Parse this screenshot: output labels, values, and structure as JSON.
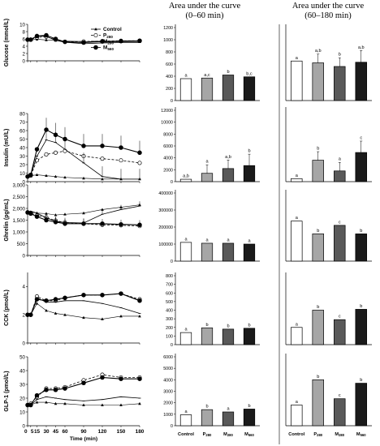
{
  "headers": {
    "auc1_line1": "Area under the curve",
    "auc1_line2": "(0–60 min)",
    "auc2_line1": "Area under the curve",
    "auc2_line2": "(60–180 min)"
  },
  "x_axis": {
    "ticks": [
      0,
      5,
      15,
      30,
      45,
      60,
      90,
      120,
      150,
      180
    ],
    "label": "Time (min)"
  },
  "legend": [
    "Control",
    "P280",
    "M280",
    "M560"
  ],
  "bar_categories": [
    "Control",
    "P280",
    "M280",
    "M560"
  ],
  "colors": {
    "control_bar": "#ffffff",
    "p280_bar": "#a6a6a6",
    "m280_bar": "#595959",
    "m560_bar": "#1a1a1a",
    "line": "#000000"
  },
  "chart_data": [
    {
      "type": "line",
      "ylabel": "Glucose (mmol/L)",
      "ylim": [
        0,
        10
      ],
      "yticks": [
        0,
        2,
        4,
        6,
        8,
        10
      ],
      "x": [
        0,
        5,
        15,
        30,
        45,
        60,
        90,
        120,
        150,
        180
      ],
      "series": [
        {
          "name": "Control",
          "values": [
            5.8,
            5.7,
            5.9,
            5.7,
            5.6,
            5.4,
            5.3,
            5.2,
            5.2,
            5.2
          ]
        },
        {
          "name": "P280",
          "values": [
            5.8,
            5.8,
            6.4,
            6.6,
            5.8,
            5.2,
            5.3,
            5.4,
            5.5,
            5.5
          ]
        },
        {
          "name": "M280",
          "values": [
            5.8,
            5.9,
            6.8,
            6.7,
            5.6,
            5.1,
            4.7,
            4.9,
            5.0,
            5.0
          ]
        },
        {
          "name": "M560",
          "values": [
            5.8,
            5.8,
            6.8,
            7.0,
            6.0,
            5.2,
            5.0,
            5.3,
            5.4,
            5.5
          ]
        }
      ]
    },
    {
      "type": "line",
      "ylabel": "Insulin (mU/L)",
      "ylim": [
        0,
        80
      ],
      "yticks": [
        0,
        10,
        20,
        30,
        40,
        50,
        60,
        70,
        80
      ],
      "x": [
        0,
        5,
        15,
        30,
        45,
        60,
        90,
        120,
        150,
        180
      ],
      "series": [
        {
          "name": "Control",
          "values": [
            6,
            7,
            8,
            7,
            6,
            5,
            4,
            3,
            3,
            3
          ]
        },
        {
          "name": "P280",
          "values": [
            6,
            7,
            25,
            32,
            34,
            36,
            30,
            27,
            25,
            22
          ]
        },
        {
          "name": "M280",
          "values": [
            6,
            8,
            30,
            49,
            46,
            38,
            22,
            6,
            3,
            3
          ]
        },
        {
          "name": "M560",
          "values": [
            6,
            8,
            38,
            61,
            55,
            50,
            42,
            42,
            40,
            34
          ]
        }
      ]
    },
    {
      "type": "line",
      "ylabel": "Ghrelin (pg/mL)",
      "ylim": [
        0,
        3000
      ],
      "yticks": [
        0,
        500,
        1000,
        1500,
        2000,
        2500,
        3000
      ],
      "x": [
        0,
        5,
        15,
        30,
        45,
        60,
        90,
        120,
        150,
        180
      ],
      "series": [
        {
          "name": "Control",
          "values": [
            1800,
            1850,
            1800,
            1780,
            1720,
            1750,
            1800,
            1950,
            2050,
            2150
          ]
        },
        {
          "name": "P280",
          "values": [
            1820,
            1800,
            1700,
            1620,
            1480,
            1400,
            1350,
            1300,
            1280,
            1250
          ]
        },
        {
          "name": "M280",
          "values": [
            1800,
            1880,
            1800,
            1600,
            1450,
            1400,
            1380,
            1750,
            1950,
            2100
          ]
        },
        {
          "name": "M560",
          "values": [
            1830,
            1780,
            1650,
            1500,
            1420,
            1350,
            1350,
            1350,
            1320,
            1300
          ]
        }
      ]
    },
    {
      "type": "line",
      "ylabel": "CCK (pmol/L)",
      "ylim": [
        0,
        5
      ],
      "yticks": [
        0,
        2,
        4
      ],
      "x": [
        0,
        5,
        15,
        30,
        45,
        60,
        90,
        120,
        150,
        180
      ],
      "series": [
        {
          "name": "Control",
          "values": [
            2.0,
            2.0,
            2.8,
            2.3,
            2.1,
            2.0,
            1.8,
            1.7,
            1.9,
            1.9
          ]
        },
        {
          "name": "P280",
          "values": [
            2.0,
            2.0,
            3.3,
            3.0,
            3.0,
            3.2,
            3.4,
            3.4,
            3.5,
            3.1
          ]
        },
        {
          "name": "M280",
          "values": [
            2.0,
            2.0,
            3.2,
            2.9,
            2.9,
            3.0,
            3.0,
            2.8,
            2.5,
            2.1
          ]
        },
        {
          "name": "M560",
          "values": [
            2.0,
            2.0,
            3.1,
            3.0,
            3.1,
            3.2,
            3.4,
            3.4,
            3.5,
            3.0
          ]
        }
      ]
    },
    {
      "type": "line",
      "ylabel": "GLP-1 (pmol/L)",
      "ylim": [
        0,
        50
      ],
      "yticks": [
        0,
        10,
        20,
        30,
        40,
        50
      ],
      "x": [
        0,
        5,
        15,
        30,
        45,
        60,
        90,
        120,
        150,
        180
      ],
      "series": [
        {
          "name": "Control",
          "values": [
            15,
            15,
            17,
            17,
            16,
            16,
            15,
            15,
            15,
            16
          ]
        },
        {
          "name": "P280",
          "values": [
            15,
            16,
            21,
            27,
            27,
            28,
            33,
            37,
            35,
            35
          ]
        },
        {
          "name": "M280",
          "values": [
            15,
            15,
            19,
            21,
            20,
            19,
            18,
            19,
            21,
            20
          ]
        },
        {
          "name": "M560",
          "values": [
            15,
            15,
            22,
            26,
            26,
            27,
            31,
            35,
            34,
            34
          ]
        }
      ]
    },
    {
      "type": "bar",
      "panel": "Glucose AUC 0–60 min",
      "categories": [
        "Control",
        "P280",
        "M280",
        "M560"
      ],
      "ylim": [
        0,
        1200
      ],
      "yticks": [
        0,
        200,
        400,
        600,
        800,
        1000,
        1200
      ],
      "values": [
        360,
        370,
        420,
        390
      ],
      "labels": [
        "a",
        "a,c",
        "b",
        "b,c"
      ]
    },
    {
      "type": "bar",
      "panel": "Glucose AUC 60–180 min",
      "categories": [
        "Control",
        "P280",
        "M280",
        "M560"
      ],
      "ylim": [
        0,
        1200
      ],
      "values": [
        650,
        620,
        560,
        630
      ],
      "labels": [
        "a",
        "a,b",
        "b",
        "a,b"
      ]
    },
    {
      "type": "bar",
      "panel": "Insulin AUC 0–60 min",
      "categories": [
        "Control",
        "P280",
        "M280",
        "M560"
      ],
      "ylim": [
        0,
        12000
      ],
      "yticks": [
        0,
        2000,
        4000,
        6000,
        8000,
        10000,
        12000
      ],
      "values": [
        400,
        1400,
        2200,
        2700
      ],
      "labels": [
        "a,b",
        "a",
        "a,b",
        "b"
      ]
    },
    {
      "type": "bar",
      "panel": "Insulin AUC 60–180 min",
      "categories": [
        "Control",
        "P280",
        "M280",
        "M560"
      ],
      "ylim": [
        0,
        12000
      ],
      "values": [
        500,
        3600,
        1800,
        4900
      ],
      "labels": [
        "a",
        "b",
        "a",
        "c"
      ]
    },
    {
      "type": "bar",
      "panel": "Ghrelin AUC 0–60 min",
      "categories": [
        "Control",
        "P280",
        "M280",
        "M560"
      ],
      "ylim": [
        0,
        400000
      ],
      "yticks": [
        0,
        100000,
        200000,
        300000,
        400000
      ],
      "values": [
        110000,
        105000,
        105000,
        100000
      ],
      "labels": [
        "a",
        "a",
        "a",
        "a"
      ]
    },
    {
      "type": "bar",
      "panel": "Ghrelin AUC 60–180 min",
      "categories": [
        "Control",
        "P280",
        "M280",
        "M560"
      ],
      "ylim": [
        0,
        400000
      ],
      "values": [
        235000,
        160000,
        210000,
        160000
      ],
      "labels": [
        "a",
        "b",
        "c",
        "b"
      ]
    },
    {
      "type": "bar",
      "panel": "CCK AUC 0–60 min",
      "categories": [
        "Control",
        "P280",
        "M280",
        "M560"
      ],
      "ylim": [
        0,
        800
      ],
      "yticks": [
        0,
        100,
        200,
        300,
        400,
        500,
        600,
        700,
        800
      ],
      "values": [
        140,
        195,
        180,
        190
      ],
      "labels": [
        "a",
        "b",
        "b",
        "b"
      ]
    },
    {
      "type": "bar",
      "panel": "CCK AUC 60–180 min",
      "categories": [
        "Control",
        "P280",
        "M280",
        "M560"
      ],
      "ylim": [
        0,
        800
      ],
      "values": [
        200,
        400,
        290,
        410
      ],
      "labels": [
        "a",
        "b",
        "c",
        "b"
      ]
    },
    {
      "type": "bar",
      "panel": "GLP-1 AUC 0–60 min",
      "categories": [
        "Control",
        "P280",
        "M280",
        "M560"
      ],
      "ylim": [
        0,
        6000
      ],
      "yticks": [
        0,
        1000,
        2000,
        3000,
        4000,
        5000,
        6000
      ],
      "values": [
        950,
        1400,
        1200,
        1450
      ],
      "labels": [
        "a",
        "b",
        "a",
        "b"
      ]
    },
    {
      "type": "bar",
      "panel": "GLP-1 AUC 60–180 min",
      "categories": [
        "Control",
        "P280",
        "M280",
        "M560"
      ],
      "ylim": [
        0,
        6000
      ],
      "values": [
        1800,
        4000,
        2350,
        3700
      ],
      "labels": [
        "a",
        "b",
        "c",
        "b"
      ]
    }
  ]
}
